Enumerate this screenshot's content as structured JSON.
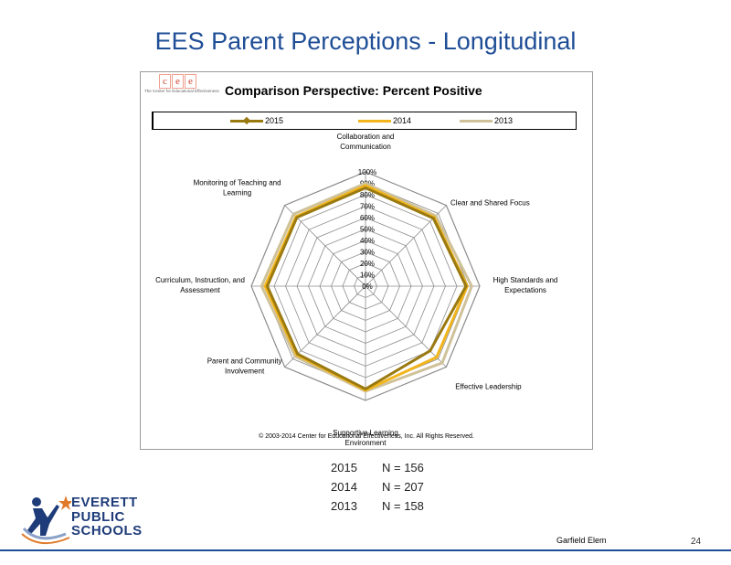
{
  "slide": {
    "title": "EES Parent Perceptions - Longitudinal",
    "school": "Garfield Elem",
    "page_number": "24"
  },
  "cee_logo": {
    "letters": [
      "c",
      "e",
      "e"
    ],
    "subtitle": "The Center for Educational Effectiveness"
  },
  "copyright": "© 2003-2014 Center for Educational Effectiveness, Inc. All Rights Reserved.",
  "n_counts": [
    {
      "year": "2015",
      "n": "N = 156"
    },
    {
      "year": "2014",
      "n": "N = 207"
    },
    {
      "year": "2013",
      "n": "N = 158"
    }
  ],
  "district_logo": {
    "lines": [
      "EVERETT",
      "PUBLIC",
      "SCHOOLS"
    ]
  },
  "chart_data": {
    "type": "radar",
    "title": "Comparison Perspective: Percent Positive",
    "categories": [
      [
        "Collaboration and",
        "Communication"
      ],
      [
        "Clear and Shared Focus"
      ],
      [
        "High Standards and",
        "Expectations"
      ],
      [
        "Effective Leadership"
      ],
      [
        "Supportive Learning",
        "Environment"
      ],
      [
        "Parent and Community",
        "Involvement"
      ],
      [
        "Curriculum, Instruction, and",
        "Assessment"
      ],
      [
        "Monitoring of Teaching and",
        "Learning"
      ]
    ],
    "ticks": [
      "0%",
      "10%",
      "20%",
      "30%",
      "40%",
      "50%",
      "60%",
      "70%",
      "80%",
      "90%",
      "100%"
    ],
    "range": [
      0,
      100
    ],
    "legend_position": "top",
    "series": [
      {
        "name": "2013",
        "color": "#cfc29a",
        "values": [
          90,
          87,
          93,
          95,
          92,
          87,
          91,
          89
        ]
      },
      {
        "name": "2014",
        "color": "#f2b51c",
        "values": [
          88,
          85,
          89,
          88,
          91,
          85,
          88,
          86
        ]
      },
      {
        "name": "2015",
        "color": "#9a7a10",
        "values": [
          86,
          84,
          88,
          80,
          90,
          84,
          86,
          85
        ]
      }
    ]
  }
}
